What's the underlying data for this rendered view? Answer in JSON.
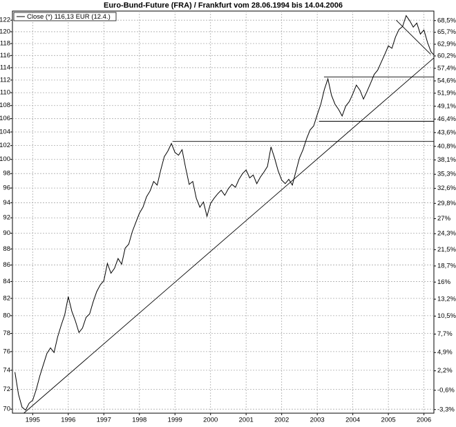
{
  "chart_data": {
    "type": "line",
    "title": "Euro-Bund-Future (FRA) / Frankfurt vom 28.06.1994 bis 14.04.2006",
    "x": [
      1994.5,
      1994.6,
      1994.7,
      1994.8,
      1994.9,
      1995.0,
      1995.1,
      1995.2,
      1995.3,
      1995.4,
      1995.5,
      1995.6,
      1995.7,
      1995.8,
      1995.9,
      1996.0,
      1996.1,
      1996.2,
      1996.3,
      1996.4,
      1996.5,
      1996.6,
      1996.7,
      1996.8,
      1996.9,
      1997.0,
      1997.1,
      1997.2,
      1997.3,
      1997.4,
      1997.5,
      1997.6,
      1997.7,
      1997.8,
      1997.9,
      1998.0,
      1998.1,
      1998.2,
      1998.3,
      1998.4,
      1998.5,
      1998.6,
      1998.7,
      1998.8,
      1998.9,
      1999.0,
      1999.1,
      1999.2,
      1999.3,
      1999.4,
      1999.5,
      1999.6,
      1999.7,
      1999.8,
      1999.9,
      2000.0,
      2000.1,
      2000.2,
      2000.3,
      2000.4,
      2000.5,
      2000.6,
      2000.7,
      2000.8,
      2000.9,
      2001.0,
      2001.1,
      2001.2,
      2001.3,
      2001.4,
      2001.5,
      2001.6,
      2001.7,
      2001.8,
      2001.9,
      2002.0,
      2002.1,
      2002.2,
      2002.3,
      2002.4,
      2002.5,
      2002.6,
      2002.7,
      2002.8,
      2002.9,
      2003.0,
      2003.1,
      2003.2,
      2003.3,
      2003.4,
      2003.5,
      2003.6,
      2003.7,
      2003.8,
      2003.9,
      2004.0,
      2004.1,
      2004.2,
      2004.3,
      2004.4,
      2004.5,
      2004.6,
      2004.7,
      2004.8,
      2004.9,
      2005.0,
      2005.1,
      2005.2,
      2005.3,
      2005.4,
      2005.5,
      2005.6,
      2005.7,
      2005.8,
      2005.9,
      2006.0,
      2006.1,
      2006.2,
      2006.28
    ],
    "series": [
      {
        "name": "Close (*) 116,13 EUR (12.4.)",
        "color": "#000000",
        "values": [
          73.8,
          71.5,
          70.2,
          69.9,
          70.6,
          70.9,
          72.0,
          73.4,
          74.6,
          75.8,
          76.4,
          75.9,
          77.6,
          78.9,
          80.1,
          82.2,
          80.5,
          79.4,
          78.1,
          78.6,
          79.8,
          80.2,
          81.6,
          82.8,
          83.6,
          84.1,
          86.2,
          85.0,
          85.6,
          86.8,
          86.1,
          88.1,
          88.6,
          90.2,
          91.4,
          92.6,
          93.4,
          94.8,
          95.6,
          96.9,
          96.4,
          98.5,
          100.4,
          101.2,
          102.3,
          101.0,
          100.6,
          101.4,
          98.8,
          96.5,
          96.9,
          94.6,
          93.4,
          94.1,
          92.2,
          93.9,
          94.6,
          95.2,
          95.7,
          95.0,
          95.9,
          96.5,
          96.1,
          97.2,
          98.0,
          98.5,
          97.4,
          97.8,
          96.6,
          97.5,
          98.2,
          99.0,
          101.8,
          100.2,
          98.4,
          97.1,
          96.6,
          97.2,
          96.4,
          98.3,
          100.2,
          101.4,
          103.0,
          104.3,
          104.9,
          106.6,
          108.2,
          110.5,
          112.2,
          109.6,
          108.2,
          107.4,
          106.4,
          107.9,
          108.6,
          109.8,
          111.2,
          110.4,
          109.0,
          110.2,
          111.5,
          112.9,
          113.6,
          114.9,
          116.2,
          117.6,
          117.2,
          119.1,
          120.4,
          120.9,
          122.8,
          121.9,
          120.8,
          121.5,
          119.6,
          120.3,
          118.2,
          116.6,
          116.1
        ]
      }
    ],
    "lines": [
      {
        "x": [
          1994.75,
          2006.28
        ],
        "y": [
          69.6,
          115.6
        ]
      },
      {
        "x": [
          2005.22,
          2006.19
        ],
        "y": [
          122.0,
          116.2
        ]
      },
      {
        "x": [
          1998.93,
          2006.28
        ],
        "y": [
          102.6,
          102.6
        ]
      },
      {
        "x": [
          2003.05,
          2006.28
        ],
        "y": [
          105.6,
          105.6
        ]
      },
      {
        "x": [
          2003.19,
          2006.28
        ],
        "y": [
          112.5,
          112.5
        ]
      }
    ],
    "xlim": [
      1994.43,
      2006.28
    ],
    "xticks": [
      1995,
      1996,
      1997,
      1998,
      1999,
      2000,
      2001,
      2002,
      2003,
      2004,
      2005,
      2006
    ],
    "ylim": [
      69.6,
      123.6
    ],
    "ylog": true,
    "yticks": [
      70,
      72,
      74,
      76,
      78,
      80,
      82,
      84,
      86,
      88,
      90,
      92,
      94,
      96,
      98,
      100,
      102,
      104,
      106,
      108,
      110,
      112,
      114,
      116,
      118,
      120,
      122
    ],
    "y2lim": [
      -3.8,
      70.8
    ],
    "y2scale": "log-ratio",
    "y2ticks": [
      {
        "value": 68.5,
        "label": "68,5%"
      },
      {
        "value": 65.7,
        "label": "65,7%"
      },
      {
        "value": 62.9,
        "label": "62,9%"
      },
      {
        "value": 60.2,
        "label": "60,2%"
      },
      {
        "value": 57.4,
        "label": "57,4%"
      },
      {
        "value": 54.6,
        "label": "54,6%"
      },
      {
        "value": 51.9,
        "label": "51,9%"
      },
      {
        "value": 49.1,
        "label": "49,1%"
      },
      {
        "value": 46.4,
        "label": "46,4%"
      },
      {
        "value": 43.6,
        "label": "43,6%"
      },
      {
        "value": 40.8,
        "label": "40,8%"
      },
      {
        "value": 38.1,
        "label": "38,1%"
      },
      {
        "value": 35.3,
        "label": "35,3%"
      },
      {
        "value": 32.6,
        "label": "32,6%"
      },
      {
        "value": 29.8,
        "label": "29,8%"
      },
      {
        "value": 27,
        "label": "27%"
      },
      {
        "value": 24.3,
        "label": "24,3%"
      },
      {
        "value": 21.5,
        "label": "21,5%"
      },
      {
        "value": 18.7,
        "label": "18,7%"
      },
      {
        "value": 16,
        "label": "16%"
      },
      {
        "value": 13.2,
        "label": "13,2%"
      },
      {
        "value": 10.5,
        "label": "10,5%"
      },
      {
        "value": 7.7,
        "label": "7,7%"
      },
      {
        "value": 4.9,
        "label": "4,9%"
      },
      {
        "value": 2.2,
        "label": "2,2%"
      },
      {
        "value": -0.6,
        "label": "-0,6%"
      },
      {
        "value": -3.3,
        "label": "-3,3%"
      }
    ],
    "grid": true,
    "legend": "top-left"
  }
}
